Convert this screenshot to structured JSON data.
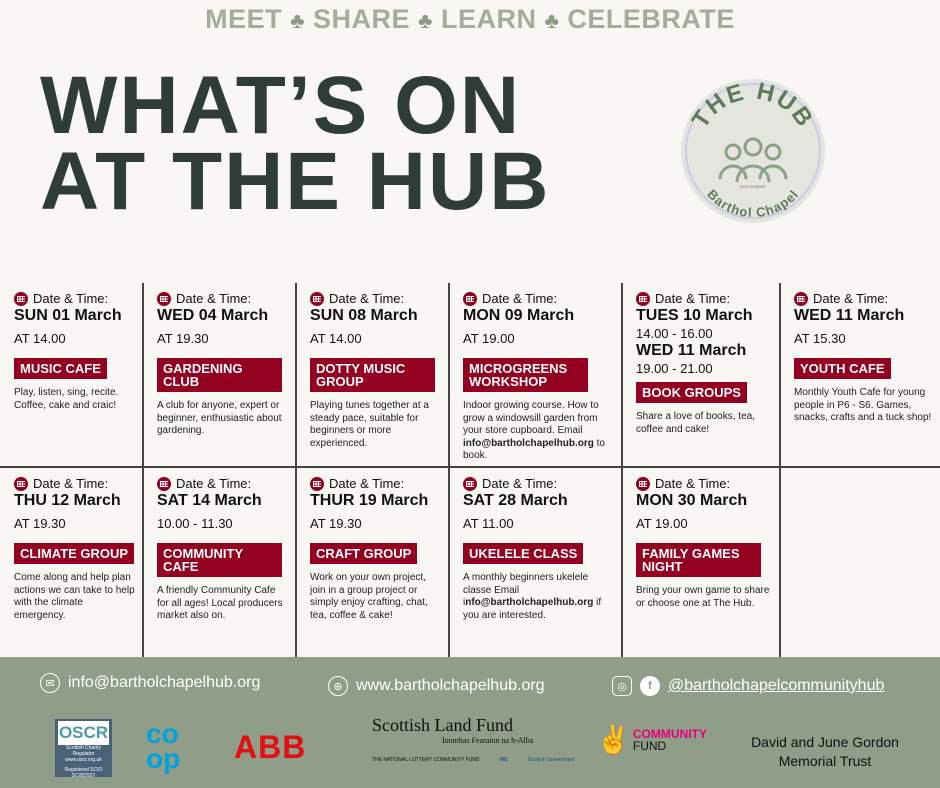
{
  "tagline": {
    "words": [
      "MEET",
      "SHARE",
      "LEARN",
      "CELEBRATE"
    ],
    "separator_icon": "leaf-icon"
  },
  "title": {
    "line1": "WHAT’S ON",
    "line2": "AT THE HUB"
  },
  "logo": {
    "top": "THE HUB",
    "bottom": "Barthol Chapel",
    "scio": "SCIO SC052937"
  },
  "date_label": "Date & Time:",
  "colors": {
    "badge": "#930020",
    "title": "#2f3d34",
    "tagline": "#a3ad9c",
    "footer": "#909d88",
    "background": "#f8f7f3"
  },
  "events": [
    {
      "day": "SUN 01 March",
      "time": "AT 14.00",
      "title": "MUSIC CAFE",
      "desc": [
        {
          "t": "Play, listen, sing, recite. Coffee, cake and craic!"
        }
      ]
    },
    {
      "day": "WED 04 March",
      "time": "AT 19.30",
      "title": "GARDENING CLUB",
      "desc": [
        {
          "t": "A club for anyone, expert or beginner, enthusiastic about gardening."
        }
      ]
    },
    {
      "day": "SUN 08 March",
      "time": "AT 14.00",
      "title": "DOTTY MUSIC GROUP",
      "desc": [
        {
          "t": "Playing tunes together at a steady pace, suitable for beginners or more experienced."
        }
      ]
    },
    {
      "day": "MON 09 March",
      "time": "AT 19.00",
      "title": "MICROGREENS WORKSHOP",
      "desc": [
        {
          "t": "Indoor growing course. How to grow a windowsill garden from your store cupboard. Email "
        },
        {
          "t": "info@bartholchapelhub.org",
          "b": true
        },
        {
          "t": " to book."
        }
      ]
    },
    {
      "day": "TUES 10 March",
      "time": "14.00 - 16.00",
      "day2": "WED 11 March",
      "time2": "19.00 - 21.00",
      "title": "BOOK GROUPS",
      "desc": [
        {
          "t": "Share a love of books, tea, coffee and cake!"
        }
      ]
    },
    {
      "day": "WED 11 March",
      "time": "AT 15.30",
      "title": "YOUTH CAFE",
      "desc": [
        {
          "t": "Monthly Youth Cafe for young people in P6 - S6. Games, snacks, crafts and a tuck shop!"
        }
      ]
    },
    {
      "day": "THU 12 March",
      "time": "AT 19.30",
      "title": "CLIMATE GROUP",
      "desc": [
        {
          "t": "Come along and help plan actions we can take to help with the climate emergency."
        }
      ]
    },
    {
      "day": "SAT 14 March",
      "time": "10.00 - 11.30",
      "title": "COMMUNITY CAFE",
      "desc": [
        {
          "t": "A friendly Community Cafe for all ages! Local producers market also on."
        }
      ]
    },
    {
      "day": "THUR 19 March",
      "time": "AT 19.30",
      "title": "CRAFT GROUP",
      "desc": [
        {
          "t": "Work on your own project, join in a group project or simply enjoy crafting, chat, tea, coffee & cake!"
        }
      ]
    },
    {
      "day": "SAT 28 March",
      "time": "AT 11.00",
      "title": "UKELELE CLASS",
      "desc": [
        {
          "t": "A monthly beginners ukelele classe Email i"
        },
        {
          "t": "nfo@bartholchapelhub.org",
          "b": true
        },
        {
          "t": " if you are interested."
        }
      ]
    },
    {
      "day": "MON 30 March",
      "time": "AT 19.00",
      "title": "FAMILY GAMES NIGHT",
      "desc": [
        {
          "t": "Bring your own game to share or choose one at The Hub."
        }
      ]
    }
  ],
  "footer": {
    "email": "info@bartholchapelhub.org",
    "website": "www.bartholchapelhub.org",
    "social": "@bartholchapelcommunityhub",
    "sponsors": {
      "oscr": {
        "name": "OSCR",
        "sub": "Scottish Charity Regulator",
        "url": "www.oscr.org.uk",
        "reg": "Registered SCIO SC052937"
      },
      "coop": "co op",
      "abb": "ABB",
      "slf": {
        "name": "Scottish Land Fund",
        "gaelic": "Ionmhas Fearainn na h-Alba",
        "delivered": "THE NATIONAL LOTTERY COMMUNITY FUND",
        "hie": "HIE",
        "gov": "Scottish Government"
      },
      "nl": {
        "line1": "COMMUNITY",
        "line2": "FUND"
      },
      "trust": "David and June Gordon Memorial Trust"
    }
  }
}
